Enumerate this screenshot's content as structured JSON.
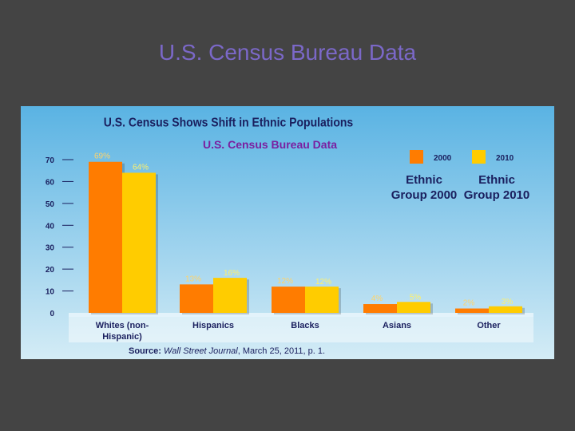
{
  "slide": {
    "title": "U.S. Census Bureau Data"
  },
  "colors": {
    "series_2000": "#ff7c00",
    "series_2010": "#ffcc00",
    "label_2000": "#ffd36a",
    "label_2010": "#fff06a",
    "title_text": "#1a1f5e",
    "subtitle_text": "#7a1fa0",
    "panel_top": "#5ab3e3",
    "panel_bottom": "#d4ecf6"
  },
  "chart_data": {
    "type": "bar",
    "title": "U.S. Census Shows Shift in Ethnic Populations",
    "subtitle": "U.S. Census Bureau Data",
    "categories": [
      "Whites (non- Hispanic)",
      "Hispanics",
      "Blacks",
      "Asians",
      "Other"
    ],
    "category_lines": [
      [
        "Whites (non-",
        "Hispanic)"
      ],
      [
        "Hispanics"
      ],
      [
        "Blacks"
      ],
      [
        "Asians"
      ],
      [
        "Other"
      ]
    ],
    "series": [
      {
        "name": "2000",
        "legend_caption": "Ethnic Group 2000",
        "legend_lines": [
          "Ethnic",
          "Group 2000"
        ],
        "values": [
          69,
          13,
          12,
          4,
          2
        ],
        "labels": [
          "69%",
          "13%",
          "12%",
          "4%",
          "2%"
        ]
      },
      {
        "name": "2010",
        "legend_caption": "Ethnic Group 2010",
        "legend_lines": [
          "Ethnic",
          "Group 2010"
        ],
        "values": [
          64,
          16,
          12,
          5,
          3
        ],
        "labels": [
          "64%",
          "16%",
          "12%",
          "5%",
          "3%"
        ]
      }
    ],
    "y_ticks": [
      0,
      10,
      20,
      30,
      40,
      50,
      60,
      70
    ],
    "ylim": [
      0,
      70
    ],
    "xlabel": "",
    "ylabel": "",
    "legend_position": "top-right",
    "grid": false,
    "source": {
      "prefix": "Source: ",
      "publication": "Wall Street Journal",
      "suffix": ", March 25, 2011, p. 1."
    }
  }
}
